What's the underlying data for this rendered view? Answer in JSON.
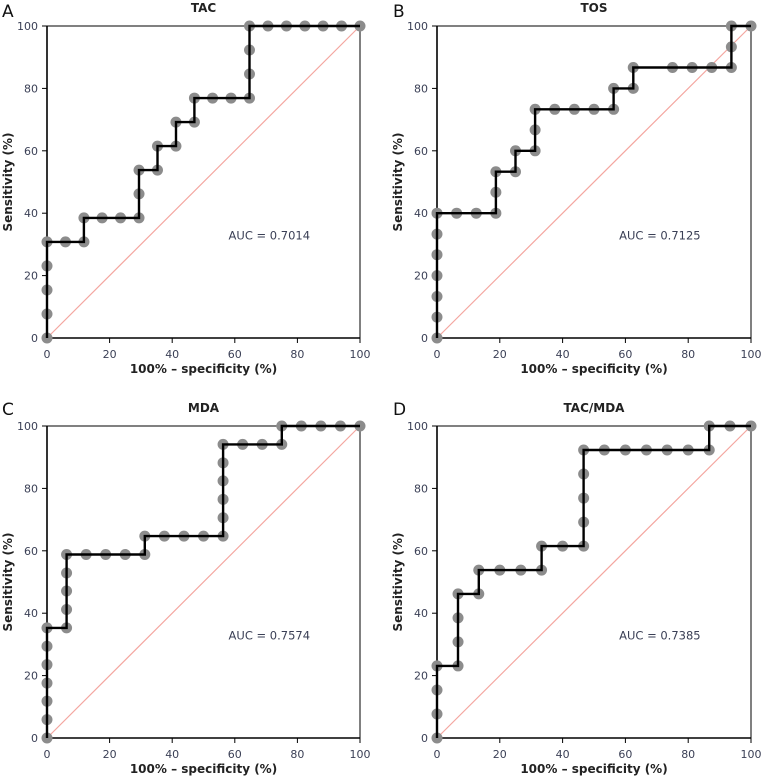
{
  "chart_data": [
    {
      "type": "line",
      "panel": "A",
      "title": "TAC",
      "xlabel": "100% – specificity (%)",
      "ylabel": "Sensitivity (%)",
      "xlim": [
        0,
        100
      ],
      "ylim": [
        0,
        100
      ],
      "xticks": [
        "0",
        "20",
        "40",
        "60",
        "80",
        "100"
      ],
      "yticks": [
        "0",
        "20",
        "40",
        "60",
        "80",
        "100"
      ],
      "annotation": "AUC = 0.7014",
      "grid": false,
      "reference_line": "diagonal",
      "series": [
        {
          "name": "ROC",
          "x": [
            0,
            0,
            0,
            0,
            0,
            5.9,
            11.8,
            11.8,
            17.6,
            23.5,
            29.4,
            29.4,
            29.4,
            35.3,
            35.3,
            41.2,
            41.2,
            47.1,
            47.1,
            52.9,
            58.8,
            64.7,
            64.7,
            64.7,
            64.7,
            70.6,
            76.5,
            82.4,
            88.2,
            94.1,
            100
          ],
          "y": [
            0,
            7.7,
            15.4,
            23.1,
            30.8,
            30.8,
            30.8,
            38.5,
            38.5,
            38.5,
            38.5,
            46.2,
            53.8,
            53.8,
            61.5,
            61.5,
            69.2,
            69.2,
            76.9,
            76.9,
            76.9,
            76.9,
            84.6,
            92.3,
            100,
            100,
            100,
            100,
            100,
            100,
            100
          ]
        }
      ]
    },
    {
      "type": "line",
      "panel": "B",
      "title": "TOS",
      "xlabel": "100% – specificity (%)",
      "ylabel": "Sensitivity (%)",
      "xlim": [
        0,
        100
      ],
      "ylim": [
        0,
        100
      ],
      "xticks": [
        "0",
        "20",
        "40",
        "60",
        "80",
        "100"
      ],
      "yticks": [
        "0",
        "20",
        "40",
        "60",
        "80",
        "100"
      ],
      "annotation": "AUC = 0.7125",
      "grid": false,
      "reference_line": "diagonal",
      "series": [
        {
          "name": "ROC",
          "x": [
            0,
            0,
            0,
            0,
            0,
            0,
            0,
            6.25,
            12.5,
            18.75,
            18.75,
            18.75,
            25,
            25,
            31.25,
            31.25,
            31.25,
            37.5,
            43.75,
            50,
            56.25,
            56.25,
            62.5,
            62.5,
            75,
            81.25,
            87.5,
            93.75,
            93.75,
            93.75,
            100
          ],
          "y": [
            0,
            6.7,
            13.3,
            20,
            26.7,
            33.3,
            40,
            40,
            40,
            40,
            46.7,
            53.3,
            53.3,
            60,
            60,
            66.7,
            73.3,
            73.3,
            73.3,
            73.3,
            73.3,
            80,
            80,
            86.7,
            86.7,
            86.7,
            86.7,
            86.7,
            93.3,
            100,
            100
          ]
        }
      ]
    },
    {
      "type": "line",
      "panel": "C",
      "title": "MDA",
      "xlabel": "100% – specificity (%)",
      "ylabel": "Sensitivity (%)",
      "xlim": [
        0,
        100
      ],
      "ylim": [
        0,
        100
      ],
      "xticks": [
        "0",
        "20",
        "40",
        "60",
        "80",
        "100"
      ],
      "yticks": [
        "0",
        "20",
        "40",
        "60",
        "80",
        "100"
      ],
      "annotation": "AUC = 0.7574",
      "grid": false,
      "reference_line": "diagonal",
      "series": [
        {
          "name": "ROC",
          "x": [
            0,
            0,
            0,
            0,
            0,
            0,
            0,
            6.25,
            6.25,
            6.25,
            6.25,
            6.25,
            12.5,
            18.75,
            25,
            31.25,
            31.25,
            37.5,
            43.75,
            50,
            56.25,
            56.25,
            56.25,
            56.25,
            56.25,
            56.25,
            62.5,
            68.75,
            75,
            75,
            81.25,
            87.5,
            93.75,
            100
          ],
          "y": [
            0,
            5.9,
            11.8,
            17.6,
            23.5,
            29.4,
            35.3,
            35.3,
            41.2,
            47.1,
            52.9,
            58.8,
            58.8,
            58.8,
            58.8,
            58.8,
            64.7,
            64.7,
            64.7,
            64.7,
            64.7,
            70.6,
            76.5,
            82.4,
            88.2,
            94.1,
            94.1,
            94.1,
            94.1,
            100,
            100,
            100,
            100,
            100
          ]
        }
      ]
    },
    {
      "type": "line",
      "panel": "D",
      "title": "TAC/MDA",
      "xlabel": "100% – specificity (%)",
      "ylabel": "Sensitivity (%)",
      "xlim": [
        0,
        100
      ],
      "ylim": [
        0,
        100
      ],
      "xticks": [
        "0",
        "20",
        "40",
        "60",
        "80",
        "100"
      ],
      "yticks": [
        "0",
        "20",
        "40",
        "60",
        "80",
        "100"
      ],
      "annotation": "AUC = 0.7385",
      "grid": false,
      "reference_line": "diagonal",
      "series": [
        {
          "name": "ROC",
          "x": [
            0,
            0,
            0,
            0,
            6.7,
            6.7,
            6.7,
            6.7,
            13.3,
            13.3,
            20,
            26.7,
            33.3,
            33.3,
            40,
            46.7,
            46.7,
            46.7,
            46.7,
            46.7,
            53.3,
            60,
            66.7,
            73.3,
            80,
            86.7,
            86.7,
            93.3,
            100
          ],
          "y": [
            0,
            7.7,
            15.4,
            23.1,
            23.1,
            30.8,
            38.5,
            46.2,
            46.2,
            53.8,
            53.8,
            53.8,
            53.8,
            61.5,
            61.5,
            61.5,
            69.2,
            76.9,
            84.6,
            92.3,
            92.3,
            92.3,
            92.3,
            92.3,
            92.3,
            92.3,
            100,
            100,
            100
          ]
        }
      ]
    }
  ],
  "colors": {
    "curve": "#000000",
    "points": "#8c8c8c",
    "reference": "#f4a6a0",
    "axis": "#000000",
    "tick_text": "#3a3f55"
  }
}
